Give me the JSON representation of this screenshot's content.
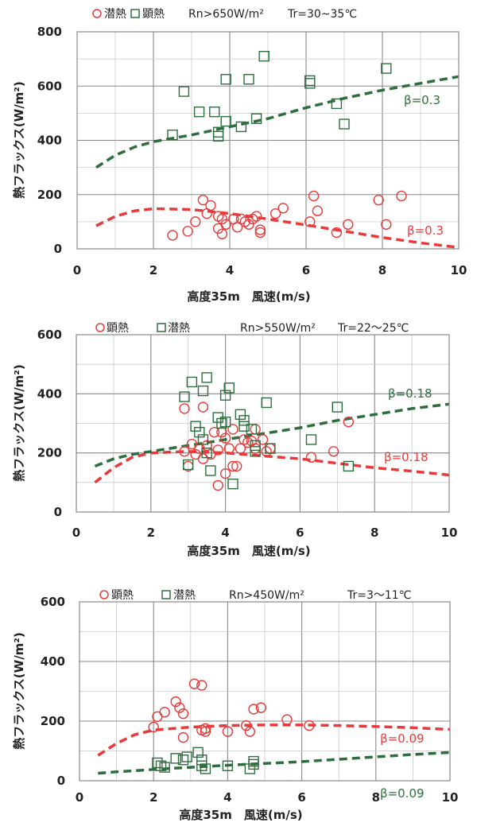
{
  "colors": {
    "red": "#e83a3a",
    "green": "#2e6e3e",
    "grid_major": "#888888",
    "grid_minor": "#c8c8c8"
  },
  "chart_data": [
    {
      "type": "scatter",
      "legend": {
        "marker1": "circle",
        "label1": "潜熱",
        "marker2": "square",
        "label2": "顕熱",
        "condition_rn": "Rn>650W/m²",
        "condition_tr": "Tr=30~35℃"
      },
      "xlabel": "高度35m　風速(m/s)",
      "ylabel": "熱フラックス(W/m²)",
      "xlim": [
        0,
        10
      ],
      "ylim": [
        0,
        800
      ],
      "xticks": [
        "0",
        "2",
        "4",
        "6",
        "8",
        "10"
      ],
      "yticks": [
        "0",
        "200",
        "400",
        "600",
        "800"
      ],
      "ystep": 200,
      "grid": true,
      "series": [
        {
          "name": "潜熱",
          "marker": "circle",
          "color": "red",
          "points": [
            [
              2.5,
              50
            ],
            [
              2.9,
              65
            ],
            [
              3.1,
              100
            ],
            [
              3.3,
              180
            ],
            [
              3.4,
              130
            ],
            [
              3.5,
              160
            ],
            [
              3.7,
              120
            ],
            [
              3.7,
              75
            ],
            [
              3.8,
              110
            ],
            [
              3.8,
              55
            ],
            [
              3.9,
              90
            ],
            [
              4.1,
              110
            ],
            [
              4.2,
              80
            ],
            [
              4.3,
              110
            ],
            [
              4.4,
              100
            ],
            [
              4.5,
              90
            ],
            [
              4.6,
              110
            ],
            [
              4.7,
              120
            ],
            [
              4.8,
              70
            ],
            [
              4.8,
              60
            ],
            [
              5.2,
              130
            ],
            [
              5.4,
              150
            ],
            [
              6.1,
              100
            ],
            [
              6.2,
              195
            ],
            [
              6.3,
              140
            ],
            [
              6.8,
              60
            ],
            [
              7.1,
              90
            ],
            [
              7.9,
              180
            ],
            [
              8.1,
              90
            ],
            [
              8.5,
              195
            ]
          ]
        },
        {
          "name": "顕熱",
          "marker": "square",
          "color": "green",
          "points": [
            [
              2.5,
              420
            ],
            [
              2.8,
              580
            ],
            [
              3.2,
              505
            ],
            [
              3.6,
              505
            ],
            [
              3.7,
              430
            ],
            [
              3.7,
              415
            ],
            [
              3.9,
              625
            ],
            [
              3.9,
              470
            ],
            [
              4.3,
              450
            ],
            [
              4.5,
              625
            ],
            [
              4.7,
              480
            ],
            [
              4.9,
              710
            ],
            [
              6.1,
              610
            ],
            [
              6.1,
              620
            ],
            [
              6.8,
              535
            ],
            [
              7.0,
              460
            ],
            [
              8.1,
              665
            ]
          ]
        }
      ],
      "fit_lines": [
        {
          "color": "red",
          "label": "β=0.3",
          "points": [
            [
              0.5,
              85
            ],
            [
              1,
              120
            ],
            [
              1.5,
              140
            ],
            [
              2,
              148
            ],
            [
              3,
              145
            ],
            [
              4,
              130
            ],
            [
              5,
              110
            ],
            [
              6,
              88
            ],
            [
              7,
              65
            ],
            [
              8,
              42
            ],
            [
              9,
              22
            ],
            [
              10,
              5
            ]
          ]
        },
        {
          "color": "green",
          "label": "β=0.3",
          "points": [
            [
              0.5,
              300
            ],
            [
              1,
              345
            ],
            [
              1.5,
              375
            ],
            [
              2,
              395
            ],
            [
              3,
              420
            ],
            [
              4,
              450
            ],
            [
              5,
              480
            ],
            [
              6,
              520
            ],
            [
              7,
              555
            ],
            [
              8,
              585
            ],
            [
              9,
              610
            ],
            [
              10,
              635
            ]
          ]
        }
      ]
    },
    {
      "type": "scatter",
      "legend": {
        "marker1": "circle",
        "label1": "顕熱",
        "marker2": "square",
        "label2": "潜熱",
        "condition_rn": "Rn>550W/m²",
        "condition_tr": "Tr=22～25℃"
      },
      "xlabel": "高度35m　風速(m/s)",
      "ylabel": "熱フラックス(W/m²)",
      "xlim": [
        0,
        10
      ],
      "ylim": [
        0,
        600
      ],
      "xticks": [
        "0",
        "2",
        "4",
        "6",
        "8",
        "10"
      ],
      "yticks": [
        "0",
        "200",
        "400",
        "600"
      ],
      "ystep": 200,
      "grid": true,
      "series": [
        {
          "name": "顕熱",
          "marker": "circle",
          "color": "red",
          "points": [
            [
              2.9,
              350
            ],
            [
              2.9,
              205
            ],
            [
              3.0,
              155
            ],
            [
              3.1,
              230
            ],
            [
              3.2,
              195
            ],
            [
              3.3,
              215
            ],
            [
              3.4,
              355
            ],
            [
              3.4,
              180
            ],
            [
              3.5,
              225
            ],
            [
              3.6,
              195
            ],
            [
              3.7,
              270
            ],
            [
              3.8,
              210
            ],
            [
              3.8,
              90
            ],
            [
              3.9,
              270
            ],
            [
              4.0,
              250
            ],
            [
              4.0,
              130
            ],
            [
              4.1,
              215
            ],
            [
              4.2,
              280
            ],
            [
              4.2,
              155
            ],
            [
              4.3,
              155
            ],
            [
              4.4,
              215
            ],
            [
              4.5,
              245
            ],
            [
              4.6,
              235
            ],
            [
              4.7,
              240
            ],
            [
              4.8,
              215
            ],
            [
              4.8,
              280
            ],
            [
              5.0,
              245
            ],
            [
              5.1,
              205
            ],
            [
              5.2,
              215
            ],
            [
              6.3,
              185
            ],
            [
              6.9,
              205
            ],
            [
              7.3,
              305
            ]
          ]
        },
        {
          "name": "潜熱",
          "marker": "square",
          "color": "green",
          "points": [
            [
              2.9,
              390
            ],
            [
              3.0,
              160
            ],
            [
              3.1,
              440
            ],
            [
              3.2,
              290
            ],
            [
              3.3,
              270
            ],
            [
              3.4,
              245
            ],
            [
              3.4,
              410
            ],
            [
              3.5,
              455
            ],
            [
              3.5,
              200
            ],
            [
              3.6,
              140
            ],
            [
              3.8,
              320
            ],
            [
              3.9,
              300
            ],
            [
              4.0,
              305
            ],
            [
              4.0,
              395
            ],
            [
              4.1,
              420
            ],
            [
              4.2,
              95
            ],
            [
              4.4,
              330
            ],
            [
              4.5,
              310
            ],
            [
              4.5,
              290
            ],
            [
              4.7,
              280
            ],
            [
              4.8,
              225
            ],
            [
              4.8,
              205
            ],
            [
              5.1,
              370
            ],
            [
              5.2,
              215
            ],
            [
              6.3,
              245
            ],
            [
              7.0,
              355
            ],
            [
              7.3,
              155
            ]
          ]
        }
      ],
      "fit_lines": [
        {
          "color": "red",
          "label": "β=0.18",
          "points": [
            [
              0.5,
              100
            ],
            [
              1,
              150
            ],
            [
              1.5,
              185
            ],
            [
              2,
              200
            ],
            [
              3,
              205
            ],
            [
              4,
              200
            ],
            [
              5,
              190
            ],
            [
              6,
              180
            ],
            [
              7,
              165
            ],
            [
              8,
              150
            ],
            [
              9,
              138
            ],
            [
              10,
              125
            ]
          ]
        },
        {
          "color": "green",
          "label": "β=0.18",
          "points": [
            [
              0.5,
              155
            ],
            [
              1,
              180
            ],
            [
              1.5,
              195
            ],
            [
              2,
              205
            ],
            [
              3,
              225
            ],
            [
              4,
              245
            ],
            [
              5,
              265
            ],
            [
              6,
              285
            ],
            [
              7,
              310
            ],
            [
              8,
              330
            ],
            [
              9,
              350
            ],
            [
              10,
              365
            ]
          ]
        }
      ]
    },
    {
      "type": "scatter",
      "legend": {
        "marker1": "circle",
        "label1": "顕熱",
        "marker2": "square",
        "label2": "潜熱",
        "condition_rn": "Rn>450W/m²",
        "condition_tr": "Tr=3～11℃"
      },
      "xlabel": "高度35m　風速(m/s)",
      "ylabel": "熱フラックス(W/m²)",
      "xlim": [
        0,
        10
      ],
      "ylim": [
        0,
        600
      ],
      "xticks": [
        "0",
        "2",
        "4",
        "6",
        "8",
        "10"
      ],
      "yticks": [
        "0",
        "200",
        "400",
        "600"
      ],
      "ystep": 200,
      "grid": true,
      "series": [
        {
          "name": "顕熱",
          "marker": "circle",
          "color": "red",
          "points": [
            [
              2.0,
              180
            ],
            [
              2.1,
              215
            ],
            [
              2.3,
              230
            ],
            [
              2.6,
              265
            ],
            [
              2.7,
              245
            ],
            [
              2.8,
              225
            ],
            [
              2.8,
              145
            ],
            [
              3.1,
              325
            ],
            [
              3.3,
              320
            ],
            [
              3.3,
              170
            ],
            [
              3.4,
              165
            ],
            [
              3.4,
              175
            ],
            [
              4.0,
              165
            ],
            [
              4.5,
              185
            ],
            [
              4.6,
              165
            ],
            [
              4.7,
              240
            ],
            [
              4.9,
              245
            ],
            [
              5.6,
              205
            ],
            [
              6.2,
              185
            ]
          ]
        },
        {
          "name": "潜熱",
          "marker": "square",
          "color": "green",
          "points": [
            [
              2.1,
              60
            ],
            [
              2.2,
              50
            ],
            [
              2.3,
              45
            ],
            [
              2.6,
              75
            ],
            [
              2.8,
              70
            ],
            [
              2.9,
              80
            ],
            [
              3.2,
              95
            ],
            [
              3.3,
              70
            ],
            [
              3.3,
              50
            ],
            [
              3.4,
              40
            ],
            [
              4.0,
              50
            ],
            [
              4.6,
              40
            ],
            [
              4.7,
              55
            ],
            [
              4.7,
              65
            ]
          ]
        }
      ],
      "fit_lines": [
        {
          "color": "red",
          "label": "β=0.09",
          "points": [
            [
              0.5,
              85
            ],
            [
              1,
              125
            ],
            [
              1.5,
              155
            ],
            [
              2,
              170
            ],
            [
              3,
              180
            ],
            [
              4,
              185
            ],
            [
              5,
              187
            ],
            [
              6,
              187
            ],
            [
              7,
              185
            ],
            [
              8,
              182
            ],
            [
              9,
              178
            ],
            [
              10,
              172
            ]
          ]
        },
        {
          "color": "green",
          "label": "β=0.09",
          "points": [
            [
              0.5,
              25
            ],
            [
              1,
              30
            ],
            [
              2,
              38
            ],
            [
              3,
              45
            ],
            [
              4,
              52
            ],
            [
              5,
              58
            ],
            [
              6,
              64
            ],
            [
              7,
              72
            ],
            [
              8,
              80
            ],
            [
              9,
              88
            ],
            [
              10,
              95
            ]
          ]
        }
      ]
    }
  ]
}
